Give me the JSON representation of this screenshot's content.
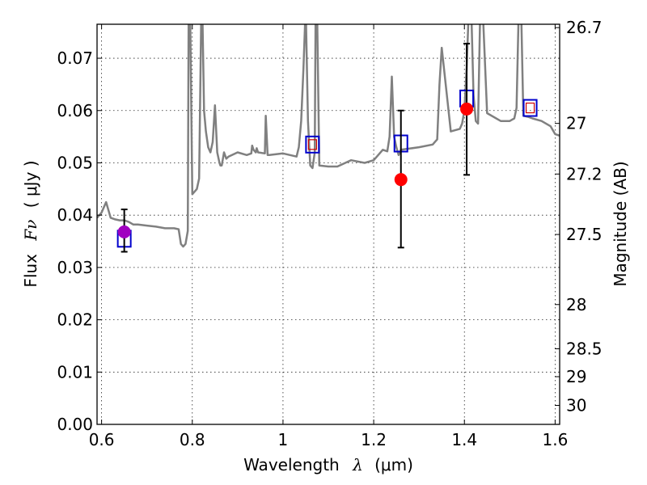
{
  "chart_data": {
    "type": "line+scatter",
    "xlabel": "Wavelength",
    "xlabel_symbol": "λ",
    "xlabel_unit": "(μm)",
    "ylabel": "Flux",
    "ylabel_symbol": "Fν",
    "ylabel_unit": "( μJy )",
    "y2label": "Magnitude (AB)",
    "xlim": [
      0.59,
      1.61
    ],
    "ylim": [
      0.0,
      0.0765
    ],
    "grid": true,
    "x_ticks": [
      0.6,
      0.8,
      1.0,
      1.2,
      1.4,
      1.6
    ],
    "x_tick_labels": [
      "0.6",
      "0.8",
      "1",
      "1.2",
      "1.4",
      "1.6"
    ],
    "y_ticks": [
      0.0,
      0.01,
      0.02,
      0.03,
      0.04,
      0.05,
      0.06,
      0.07
    ],
    "y_tick_labels": [
      "0.00",
      "0.01",
      "0.02",
      "0.03",
      "0.04",
      "0.05",
      "0.06",
      "0.07"
    ],
    "mag_ticks": [
      26.7,
      27,
      27.2,
      27.5,
      28,
      28.5,
      29,
      30
    ],
    "mag_tick_labels": [
      "26.7",
      "27",
      "27.2",
      "27.5",
      "28",
      "28.5",
      "29",
      "30"
    ],
    "series": [
      {
        "name": "model_sed",
        "kind": "line",
        "color": "#808080",
        "x": [
          0.59,
          0.6,
          0.61,
          0.615,
          0.62,
          0.63,
          0.64,
          0.65,
          0.66,
          0.67,
          0.68,
          0.7,
          0.72,
          0.74,
          0.76,
          0.77,
          0.775,
          0.78,
          0.785,
          0.79,
          0.792,
          0.795,
          0.8,
          0.805,
          0.81,
          0.815,
          0.82,
          0.822,
          0.826,
          0.83,
          0.835,
          0.84,
          0.845,
          0.85,
          0.855,
          0.86,
          0.862,
          0.865,
          0.87,
          0.875,
          0.88,
          0.9,
          0.92,
          0.93,
          0.932,
          0.935,
          0.94,
          0.942,
          0.945,
          0.96,
          0.962,
          0.966,
          0.97,
          1.0,
          1.03,
          1.035,
          1.04,
          1.045,
          1.05,
          1.055,
          1.06,
          1.065,
          1.07,
          1.072,
          1.075,
          1.08,
          1.1,
          1.12,
          1.15,
          1.18,
          1.2,
          1.22,
          1.23,
          1.235,
          1.24,
          1.245,
          1.25,
          1.255,
          1.26,
          1.3,
          1.33,
          1.335,
          1.34,
          1.345,
          1.35,
          1.37,
          1.39,
          1.395,
          1.4,
          1.405,
          1.41,
          1.415,
          1.42,
          1.425,
          1.43,
          1.435,
          1.44,
          1.45,
          1.48,
          1.5,
          1.51,
          1.515,
          1.52,
          1.525,
          1.53,
          1.54,
          1.55,
          1.57,
          1.58,
          1.59,
          1.6,
          1.61
        ],
        "y": [
          0.0395,
          0.0405,
          0.0425,
          0.041,
          0.0395,
          0.0392,
          0.039,
          0.039,
          0.0387,
          0.0382,
          0.0382,
          0.038,
          0.0378,
          0.0375,
          0.0375,
          0.0373,
          0.0345,
          0.034,
          0.0345,
          0.037,
          0.08,
          0.08,
          0.044,
          0.0445,
          0.045,
          0.047,
          0.08,
          0.08,
          0.06,
          0.056,
          0.053,
          0.052,
          0.054,
          0.061,
          0.052,
          0.05,
          0.0495,
          0.0495,
          0.052,
          0.0508,
          0.0512,
          0.052,
          0.0515,
          0.0518,
          0.0533,
          0.0525,
          0.052,
          0.0528,
          0.052,
          0.0518,
          0.059,
          0.0515,
          0.0515,
          0.0518,
          0.0512,
          0.053,
          0.058,
          0.068,
          0.08,
          0.058,
          0.0495,
          0.049,
          0.052,
          0.08,
          0.08,
          0.0495,
          0.0493,
          0.0493,
          0.0505,
          0.05,
          0.0505,
          0.0525,
          0.0522,
          0.055,
          0.0665,
          0.055,
          0.053,
          0.0515,
          0.0525,
          0.053,
          0.0535,
          0.054,
          0.0545,
          0.065,
          0.072,
          0.056,
          0.0565,
          0.0575,
          0.06,
          0.068,
          0.08,
          0.08,
          0.063,
          0.058,
          0.0575,
          0.08,
          0.08,
          0.0595,
          0.058,
          0.058,
          0.0585,
          0.0605,
          0.08,
          0.08,
          0.059,
          0.0588,
          0.0585,
          0.058,
          0.0575,
          0.057,
          0.0555,
          0.0552
        ]
      },
      {
        "name": "model_bandpass",
        "kind": "open-square",
        "color": "#0000cc",
        "x": [
          0.65,
          1.065,
          1.26,
          1.405,
          1.545
        ],
        "y": [
          0.0355,
          0.0535,
          0.0537,
          0.0623,
          0.0605
        ]
      },
      {
        "name": "small_squares",
        "kind": "open-square-small",
        "color": "#cc0000",
        "x": [
          1.065,
          1.545
        ],
        "y": [
          0.0535,
          0.0605
        ]
      },
      {
        "name": "observed",
        "kind": "filled-circle",
        "color": "#ff0000",
        "x": [
          1.26,
          1.405
        ],
        "y": [
          0.0468,
          0.0603
        ],
        "yerr_low": [
          0.0338,
          0.0477
        ],
        "yerr_high": [
          0.06,
          0.0728
        ]
      },
      {
        "name": "observed_purple",
        "kind": "filled-circle",
        "color": "#a000c0",
        "x": [
          0.65
        ],
        "y": [
          0.0368
        ],
        "yerr_low": [
          0.033
        ],
        "yerr_high": [
          0.0411
        ]
      }
    ]
  }
}
